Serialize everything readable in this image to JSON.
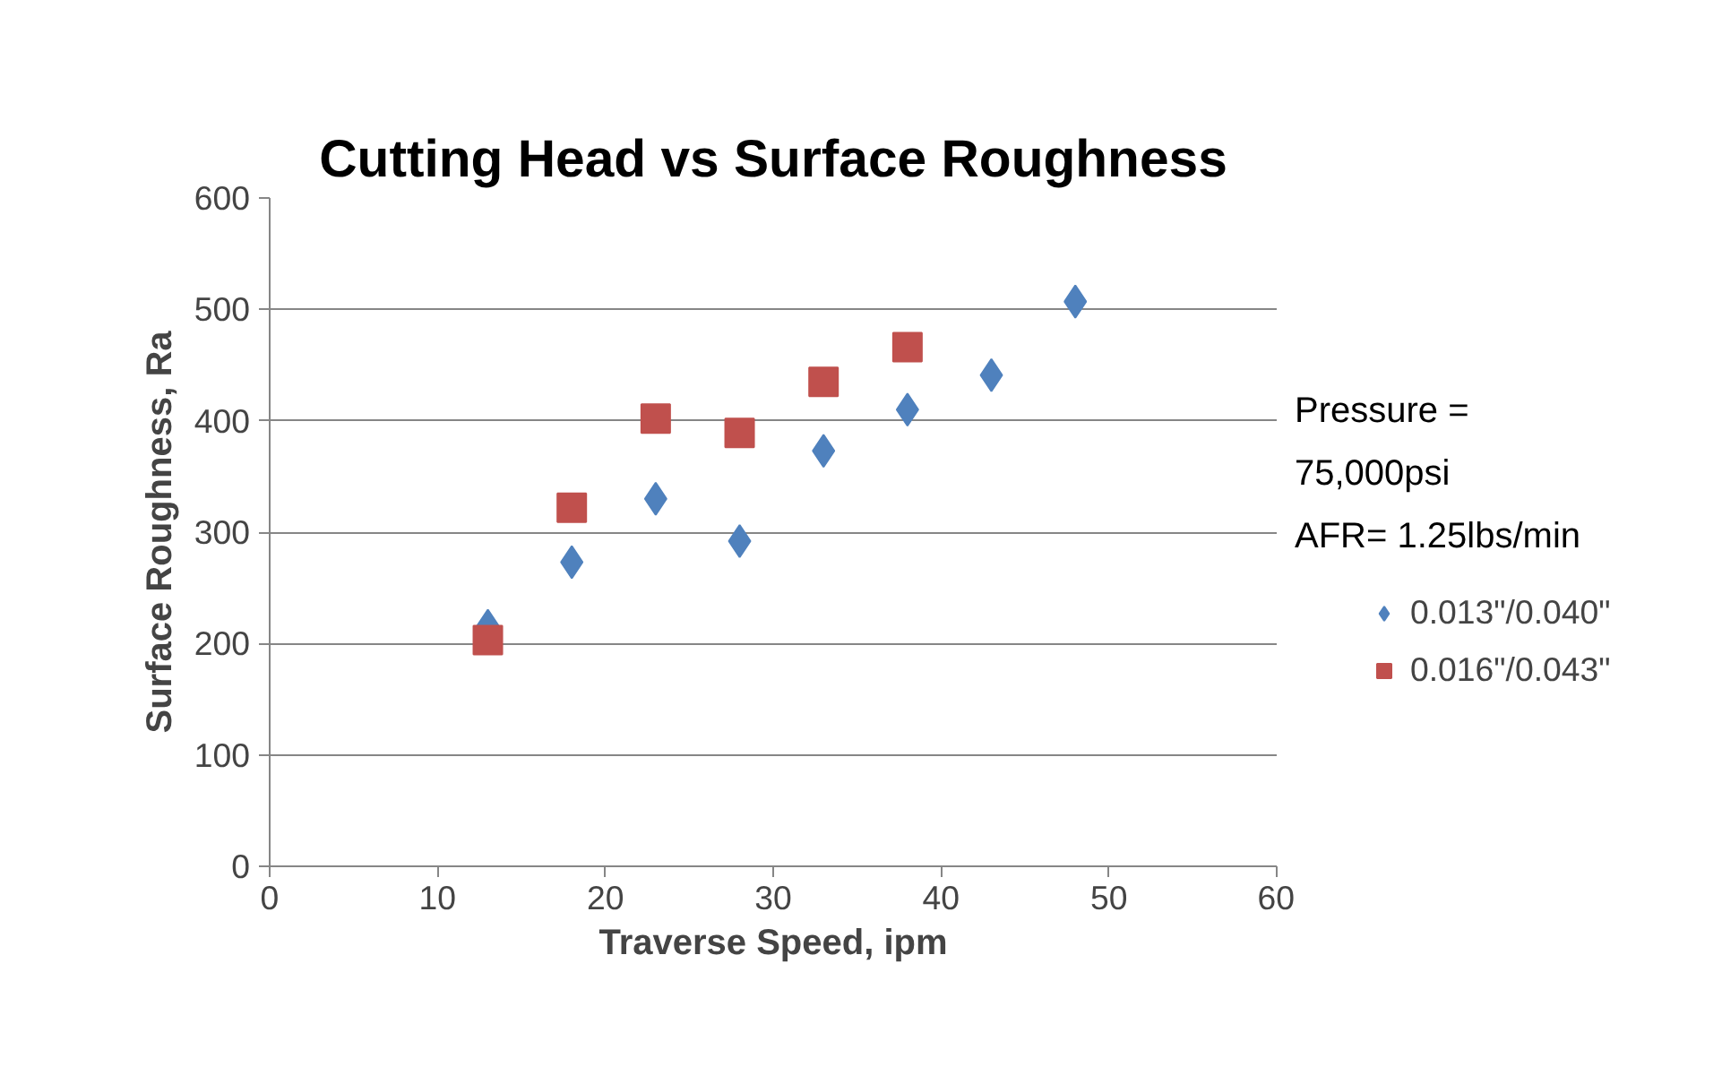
{
  "chart_data": {
    "type": "scatter",
    "title": "Cutting Head vs Surface Roughness",
    "xlabel": "Traverse Speed, ipm",
    "ylabel": "Surface Roughness, Ra",
    "annotations": [
      "Pressure =",
      "75,000psi",
      "AFR= 1.25lbs/min"
    ],
    "xlim": [
      0,
      60
    ],
    "xticks": [
      0,
      10,
      20,
      30,
      40,
      50,
      60
    ],
    "ylim": [
      0,
      600
    ],
    "yticks": [
      0,
      100,
      200,
      300,
      400,
      500,
      600
    ],
    "grid": "y",
    "legend": "right",
    "series": [
      {
        "name": "0.013\"/0.040\"",
        "color": "#4f81bd",
        "marker": "diamond",
        "x": [
          13,
          18,
          23,
          28,
          33,
          38,
          43,
          48
        ],
        "values": [
          216,
          273,
          330,
          292,
          373,
          410,
          441,
          507
        ]
      },
      {
        "name": "0.016\"/0.043\"",
        "color": "#c0504d",
        "marker": "square",
        "x": [
          13,
          18,
          23,
          28,
          33,
          38
        ],
        "values": [
          203,
          322,
          402,
          389,
          435,
          466
        ]
      }
    ]
  }
}
